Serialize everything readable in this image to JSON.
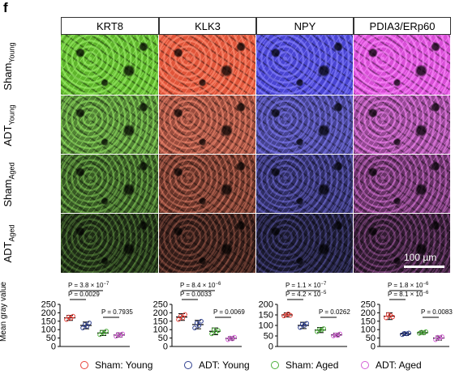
{
  "panel_label": "f",
  "columns": [
    "KRT8",
    "KLK3",
    "NPY",
    "PDIA3/ERp60"
  ],
  "rows": [
    {
      "main": "Sham",
      "sub": "Young"
    },
    {
      "main": "ADT",
      "sub": "Young"
    },
    {
      "main": "Sham",
      "sub": "Aged"
    },
    {
      "main": "ADT",
      "sub": "Aged"
    }
  ],
  "channel_colors": [
    "#5fb42c",
    "#e0553a",
    "#4a45d2",
    "#d84fd6"
  ],
  "scale_bar_label": "100 µm",
  "y_axis_title": "Mean gray value",
  "legend": [
    {
      "label": "Sham: Young",
      "color": "#e8423a"
    },
    {
      "label": "ADT: Young",
      "color": "#2e3f8f"
    },
    {
      "label": "Sham: Aged",
      "color": "#4caf3a"
    },
    {
      "label": "ADT: Aged",
      "color": "#d45fd6"
    }
  ],
  "chart_data": [
    {
      "type": "scatter",
      "panel": "KRT8",
      "ylim": [
        0,
        250
      ],
      "yticks": [
        0,
        50,
        100,
        150,
        200,
        250
      ],
      "groups": [
        "Sham: Young",
        "ADT: Young",
        "Sham: Aged",
        "ADT: Aged"
      ],
      "means": [
        170,
        125,
        80,
        68
      ],
      "errors": [
        15,
        20,
        15,
        12
      ],
      "points": [
        [
          160,
          175,
          168,
          180
        ],
        [
          110,
          130,
          120,
          140
        ],
        [
          70,
          85,
          78,
          92
        ],
        [
          60,
          72,
          65,
          75
        ]
      ],
      "comparisons": [
        {
          "from": 0,
          "to": 1,
          "label": "P = 3.8 × 10",
          "exp": "−7"
        },
        {
          "from": 0,
          "to": 1,
          "label": "P = 0.0029",
          "exp": ""
        },
        {
          "from": 2,
          "to": 3,
          "label": "P = 0.7935",
          "exp": ""
        }
      ]
    },
    {
      "type": "scatter",
      "panel": "KLK3",
      "ylim": [
        0,
        250
      ],
      "yticks": [
        0,
        50,
        100,
        150,
        200,
        250
      ],
      "groups": [
        "Sham: Young",
        "ADT: Young",
        "Sham: Aged",
        "ADT: Aged"
      ],
      "means": [
        175,
        130,
        90,
        48
      ],
      "errors": [
        20,
        25,
        20,
        10
      ],
      "points": [
        [
          160,
          180,
          170,
          190
        ],
        [
          110,
          140,
          125,
          150
        ],
        [
          75,
          100,
          85,
          95
        ],
        [
          40,
          50,
          45,
          55
        ]
      ],
      "comparisons": [
        {
          "from": 0,
          "to": 1,
          "label": "P = 8.4 × 10",
          "exp": "−6"
        },
        {
          "from": 0,
          "to": 1,
          "label": "P = 0.0033",
          "exp": ""
        },
        {
          "from": 2,
          "to": 3,
          "label": "P = 0.0069",
          "exp": ""
        }
      ]
    },
    {
      "type": "scatter",
      "panel": "NPY",
      "ylim": [
        0,
        200
      ],
      "yticks": [
        0,
        50,
        100,
        150,
        200
      ],
      "groups": [
        "Sham: Young",
        "ADT: Young",
        "Sham: Aged",
        "ADT: Aged"
      ],
      "means": [
        150,
        100,
        78,
        55
      ],
      "errors": [
        10,
        15,
        12,
        8
      ],
      "points": [
        [
          145,
          150,
          155,
          148
        ],
        [
          90,
          105,
          100,
          110
        ],
        [
          70,
          80,
          78,
          85
        ],
        [
          50,
          55,
          52,
          60
        ]
      ],
      "comparisons": [
        {
          "from": 0,
          "to": 1,
          "label": "P = 1.1 × 10",
          "exp": "−7"
        },
        {
          "from": 0,
          "to": 1,
          "label": "P = 4.2 × 10",
          "exp": "−5"
        },
        {
          "from": 2,
          "to": 3,
          "label": "P = 0.0262",
          "exp": ""
        }
      ]
    },
    {
      "type": "scatter",
      "panel": "PDIA3/ERp60",
      "ylim": [
        0,
        250
      ],
      "yticks": [
        0,
        50,
        100,
        150,
        200,
        250
      ],
      "groups": [
        "Sham: Young",
        "ADT: Young",
        "Sham: Aged",
        "ADT: Aged"
      ],
      "means": [
        180,
        75,
        82,
        50
      ],
      "errors": [
        20,
        10,
        10,
        12
      ],
      "points": [
        [
          170,
          190,
          185,
          175
        ],
        [
          70,
          78,
          75,
          80
        ],
        [
          78,
          85,
          80,
          88
        ],
        [
          40,
          55,
          50,
          58
        ]
      ],
      "comparisons": [
        {
          "from": 0,
          "to": 1,
          "label": "P = 1.8 × 10",
          "exp": "−6"
        },
        {
          "from": 0,
          "to": 1,
          "label": "P = 8.1 × 10",
          "exp": "−6"
        },
        {
          "from": 2,
          "to": 3,
          "label": "P = 0.0083",
          "exp": ""
        }
      ]
    }
  ]
}
